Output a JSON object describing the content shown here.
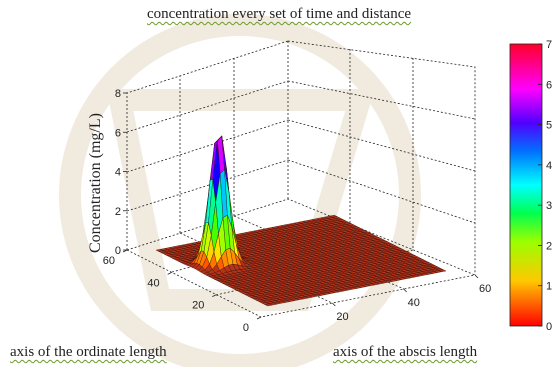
{
  "chart_data": {
    "type": "surface3d",
    "title": "concentration every set of time and distance",
    "zlabel": "Concentration  (mg/L)",
    "ylabel": "axis of the ordinate length",
    "xlabel": "axis of the abscis length",
    "xlim": [
      0,
      60
    ],
    "ylim": [
      0,
      60
    ],
    "zlim": [
      0,
      8
    ],
    "x_ticks": [
      "20",
      "40",
      "60"
    ],
    "y_ticks": [
      "0",
      "20",
      "40",
      "60"
    ],
    "z_ticks": [
      "0",
      "2",
      "4",
      "6",
      "8"
    ],
    "colorbar": {
      "ticks": [
        "0",
        "1",
        "2",
        "3",
        "4",
        "5",
        "6",
        "7"
      ],
      "range": [
        0,
        7
      ],
      "colormap": "hsv"
    },
    "surface": {
      "x_extent": [
        5,
        55
      ],
      "y_extent": [
        5,
        55
      ],
      "baseline": 0.1,
      "peak": {
        "x": 12,
        "y": 38,
        "z": 7
      }
    },
    "grid": true
  }
}
